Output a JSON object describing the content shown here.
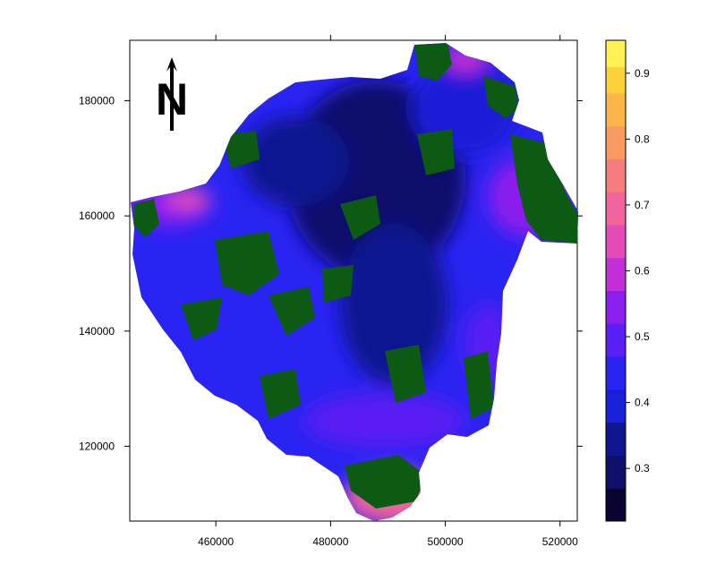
{
  "map": {
    "title": "",
    "x_axis": {
      "range": [
        445000,
        523000
      ],
      "ticks": [
        460000,
        480000,
        500000,
        520000
      ],
      "tick_labels": [
        "460000",
        "480000",
        "500000",
        "520000"
      ]
    },
    "y_axis": {
      "range": [
        107000,
        190500
      ],
      "ticks": [
        120000,
        140000,
        160000,
        180000
      ],
      "tick_labels": [
        "120000",
        "140000",
        "160000",
        "180000"
      ]
    },
    "north_arrow": {
      "label": "N"
    }
  },
  "legend": {
    "range": [
      0.22,
      0.95
    ],
    "tick_values": [
      0.3,
      0.4,
      0.5,
      0.6,
      0.7,
      0.8,
      0.9
    ],
    "tick_labels": [
      "0.3",
      "0.4",
      "0.5",
      "0.6",
      "0.7",
      "0.8",
      "0.9"
    ],
    "color_stops": [
      {
        "from": 0.22,
        "to": 0.27,
        "color": "#0a0530"
      },
      {
        "from": 0.27,
        "to": 0.32,
        "color": "#10106b"
      },
      {
        "from": 0.32,
        "to": 0.37,
        "color": "#101690"
      },
      {
        "from": 0.37,
        "to": 0.42,
        "color": "#1a1fd8"
      },
      {
        "from": 0.42,
        "to": 0.47,
        "color": "#2a24f2"
      },
      {
        "from": 0.47,
        "to": 0.52,
        "color": "#5a1ff2"
      },
      {
        "from": 0.52,
        "to": 0.57,
        "color": "#8a1fee"
      },
      {
        "from": 0.57,
        "to": 0.62,
        "color": "#c22fd6"
      },
      {
        "from": 0.62,
        "to": 0.67,
        "color": "#e24bb8"
      },
      {
        "from": 0.67,
        "to": 0.72,
        "color": "#f2649c"
      },
      {
        "from": 0.72,
        "to": 0.77,
        "color": "#f67d7e"
      },
      {
        "from": 0.77,
        "to": 0.82,
        "color": "#f99a62"
      },
      {
        "from": 0.82,
        "to": 0.87,
        "color": "#fbb548"
      },
      {
        "from": 0.87,
        "to": 0.91,
        "color": "#fdd13a"
      },
      {
        "from": 0.91,
        "to": 0.95,
        "color": "#fef055"
      }
    ]
  },
  "colors": {
    "masked_area": "#0c5a14",
    "background": "#ffffff",
    "frame": "#000000"
  }
}
